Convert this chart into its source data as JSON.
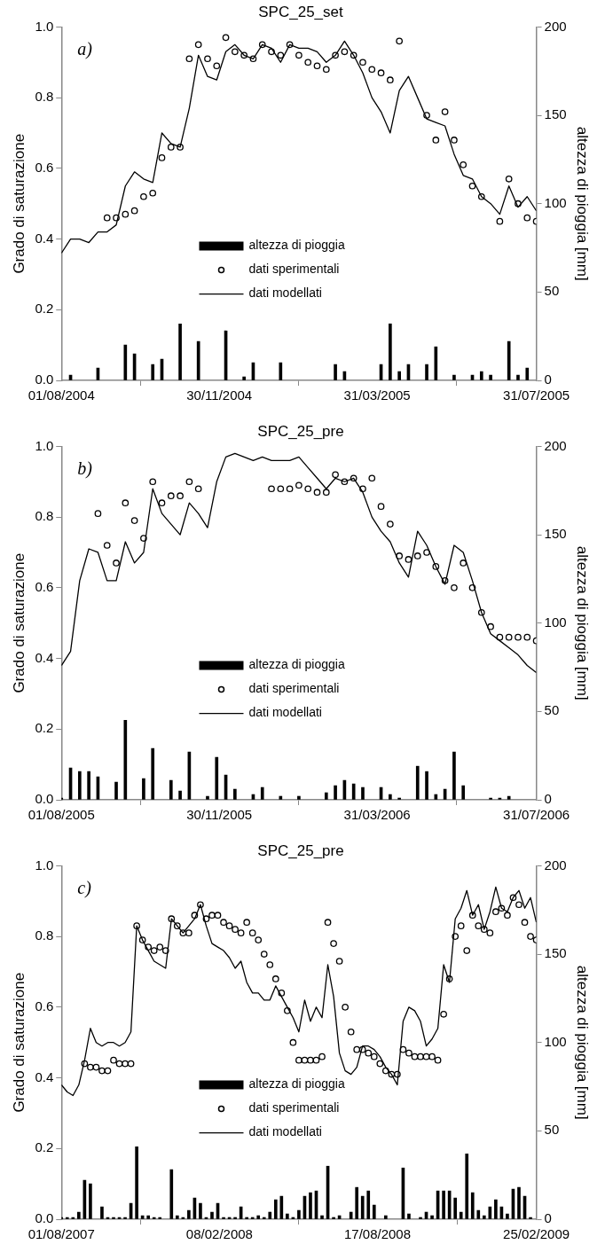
{
  "chart_data": [
    {
      "type": "line",
      "title": "SPC_25_set",
      "ylabel": "Grado di saturazione",
      "y2label": "altezza di pioggia [mm]",
      "annotations": [
        "a)"
      ],
      "legend": "bottom",
      "x": [
        "2004-08-01",
        "2004-08-08",
        "2004-08-15",
        "2004-08-22",
        "2004-08-29",
        "2004-09-05",
        "2004-09-12",
        "2004-09-19",
        "2004-09-26",
        "2004-10-03",
        "2004-10-10",
        "2004-10-17",
        "2004-10-24",
        "2004-10-31",
        "2004-11-07",
        "2004-11-14",
        "2004-11-21",
        "2004-11-28",
        "2004-12-05",
        "2004-12-12",
        "2004-12-19",
        "2004-12-26",
        "2005-01-02",
        "2005-01-09",
        "2005-01-16",
        "2005-01-23",
        "2005-01-30",
        "2005-02-06",
        "2005-02-13",
        "2005-02-20",
        "2005-02-27",
        "2005-03-06",
        "2005-03-13",
        "2005-03-20",
        "2005-03-27",
        "2005-04-03",
        "2005-04-10",
        "2005-04-17",
        "2005-04-24",
        "2005-05-01",
        "2005-05-08",
        "2005-05-15",
        "2005-05-22",
        "2005-05-29",
        "2005-06-05",
        "2005-06-12",
        "2005-06-19",
        "2005-06-26",
        "2005-07-03",
        "2005-07-10",
        "2005-07-17",
        "2005-07-24",
        "2005-07-31"
      ],
      "xlim": [
        "2004-08-01",
        "2005-07-31"
      ],
      "xticks": [
        {
          "value": "2004-08-01",
          "label": "01/08/2004"
        },
        {
          "value": "2004-11-30",
          "label": "30/11/2004"
        },
        {
          "value": "2005-03-31",
          "label": "31/03/2005"
        },
        {
          "value": "2005-07-31",
          "label": "31/07/2005"
        }
      ],
      "ylim": [
        0,
        1
      ],
      "yticks": [
        {
          "value": 0,
          "label": "0.0"
        },
        {
          "value": 0.2,
          "label": "0.2"
        },
        {
          "value": 0.4,
          "label": "0.4"
        },
        {
          "value": 0.6,
          "label": "0.6"
        },
        {
          "value": 0.8,
          "label": "0.8"
        },
        {
          "value": 1,
          "label": "1.0"
        }
      ],
      "y2lim": [
        0,
        200
      ],
      "y2ticks": [
        0,
        50,
        100,
        150,
        200
      ],
      "series": [
        {
          "name": "altezza di pioggia",
          "type": "bar",
          "axis": "y2",
          "color": "#000000",
          "values": [
            null,
            3,
            null,
            null,
            7,
            null,
            null,
            20,
            15,
            null,
            9,
            12,
            null,
            32,
            null,
            22,
            null,
            null,
            28,
            null,
            2,
            10,
            null,
            null,
            10,
            null,
            null,
            null,
            null,
            null,
            9,
            5,
            null,
            null,
            null,
            9,
            32,
            5,
            9,
            null,
            9,
            19,
            null,
            3,
            null,
            3,
            5,
            3,
            null,
            22,
            3,
            7,
            null
          ]
        },
        {
          "name": "dati sperimentali",
          "type": "scatter",
          "marker": "circle",
          "color": "#000000",
          "values": [
            null,
            null,
            null,
            null,
            null,
            0.46,
            0.46,
            0.47,
            0.48,
            0.52,
            0.53,
            0.63,
            0.66,
            0.66,
            0.91,
            0.95,
            0.91,
            0.89,
            0.97,
            0.93,
            0.92,
            0.91,
            0.95,
            0.93,
            0.92,
            0.95,
            0.92,
            0.9,
            0.89,
            0.88,
            0.92,
            0.93,
            0.92,
            0.9,
            0.88,
            0.87,
            0.85,
            0.96,
            null,
            null,
            0.75,
            0.68,
            0.76,
            0.68,
            0.61,
            0.55,
            0.52,
            null,
            0.45,
            0.57,
            0.5,
            0.46,
            0.45
          ]
        },
        {
          "name": "dati modellati",
          "color": "#000000",
          "values": [
            0.36,
            0.4,
            0.4,
            0.39,
            0.42,
            0.42,
            0.44,
            0.55,
            0.59,
            0.57,
            0.56,
            0.7,
            0.67,
            0.66,
            0.77,
            0.92,
            0.86,
            0.85,
            0.93,
            0.95,
            0.92,
            0.91,
            0.95,
            0.94,
            0.9,
            0.95,
            0.94,
            0.94,
            0.93,
            0.9,
            0.92,
            0.96,
            0.92,
            0.87,
            0.8,
            0.76,
            0.7,
            0.82,
            0.86,
            0.8,
            0.74,
            0.73,
            0.72,
            0.64,
            0.58,
            0.57,
            0.52,
            0.5,
            0.47,
            0.55,
            0.49,
            0.52,
            0.48
          ]
        }
      ]
    },
    {
      "type": "line",
      "title": "SPC_25_pre",
      "ylabel": "Grado di saturazione",
      "y2label": "altezza di pioggia [mm]",
      "annotations": [
        "b)"
      ],
      "legend": "bottom",
      "x": [
        "2005-08-01",
        "2005-08-08",
        "2005-08-15",
        "2005-08-22",
        "2005-08-29",
        "2005-09-05",
        "2005-09-12",
        "2005-09-19",
        "2005-09-26",
        "2005-10-03",
        "2005-10-10",
        "2005-10-17",
        "2005-10-24",
        "2005-10-31",
        "2005-11-07",
        "2005-11-14",
        "2005-11-21",
        "2005-11-28",
        "2005-12-05",
        "2005-12-12",
        "2005-12-19",
        "2005-12-26",
        "2006-01-02",
        "2006-01-09",
        "2006-01-16",
        "2006-01-23",
        "2006-01-30",
        "2006-02-06",
        "2006-02-13",
        "2006-02-20",
        "2006-02-27",
        "2006-03-06",
        "2006-03-13",
        "2006-03-20",
        "2006-03-27",
        "2006-04-03",
        "2006-04-10",
        "2006-04-17",
        "2006-04-24",
        "2006-05-01",
        "2006-05-08",
        "2006-05-15",
        "2006-05-22",
        "2006-05-29",
        "2006-06-05",
        "2006-06-12",
        "2006-06-19",
        "2006-06-26",
        "2006-07-03",
        "2006-07-10",
        "2006-07-17",
        "2006-07-24",
        "2006-07-31"
      ],
      "xlim": [
        "2005-08-01",
        "2006-07-31"
      ],
      "xticks": [
        {
          "value": "2005-08-01",
          "label": "01/08/2005"
        },
        {
          "value": "2005-11-30",
          "label": "30/11/2005"
        },
        {
          "value": "2006-03-31",
          "label": "31/03/2006"
        },
        {
          "value": "2006-07-31",
          "label": "31/07/2006"
        }
      ],
      "ylim": [
        0,
        1
      ],
      "yticks": [
        {
          "value": 0,
          "label": "0.0"
        },
        {
          "value": 0.2,
          "label": "0.2"
        },
        {
          "value": 0.4,
          "label": "0.4"
        },
        {
          "value": 0.6,
          "label": "0.6"
        },
        {
          "value": 0.8,
          "label": "0.8"
        },
        {
          "value": 1,
          "label": "1.0"
        }
      ],
      "y2lim": [
        0,
        200
      ],
      "y2ticks": [
        0,
        50,
        100,
        150,
        200
      ],
      "series": [
        {
          "name": "altezza di pioggia",
          "type": "bar",
          "axis": "y2",
          "color": "#000000",
          "values": [
            1,
            18,
            16,
            16,
            13,
            null,
            10,
            45,
            null,
            12,
            29,
            null,
            11,
            5,
            27,
            null,
            2,
            24,
            14,
            6,
            null,
            3,
            7,
            null,
            2,
            null,
            2,
            null,
            null,
            4,
            8,
            11,
            9,
            7,
            null,
            7,
            3,
            1,
            null,
            19,
            16,
            3,
            6,
            27,
            8,
            null,
            null,
            1,
            1,
            2,
            null,
            null,
            null
          ]
        },
        {
          "name": "dati sperimentali",
          "type": "scatter",
          "marker": "circle",
          "color": "#000000",
          "values": [
            null,
            null,
            null,
            null,
            0.81,
            0.72,
            0.67,
            0.84,
            0.79,
            0.74,
            0.9,
            0.84,
            0.86,
            0.86,
            0.9,
            0.88,
            null,
            null,
            null,
            null,
            null,
            null,
            null,
            0.88,
            0.88,
            0.88,
            0.89,
            0.88,
            0.87,
            0.87,
            0.92,
            0.9,
            0.91,
            0.88,
            0.91,
            0.83,
            0.78,
            0.69,
            0.68,
            0.69,
            0.7,
            0.66,
            0.62,
            0.6,
            0.67,
            0.6,
            0.53,
            0.49,
            0.46,
            0.46,
            0.46,
            0.46,
            0.45
          ]
        },
        {
          "name": "dati modellati",
          "color": "#000000",
          "values": [
            0.38,
            0.42,
            0.62,
            0.71,
            0.7,
            0.62,
            0.62,
            0.73,
            0.67,
            0.7,
            0.88,
            0.81,
            0.78,
            0.75,
            0.84,
            0.81,
            0.77,
            0.9,
            0.97,
            0.98,
            0.97,
            0.96,
            0.97,
            0.96,
            0.96,
            0.96,
            0.97,
            0.94,
            0.91,
            0.88,
            0.91,
            0.9,
            0.91,
            0.87,
            0.8,
            0.76,
            0.73,
            0.67,
            0.63,
            0.76,
            0.72,
            0.66,
            0.61,
            0.72,
            0.7,
            0.62,
            0.53,
            0.47,
            0.45,
            0.43,
            0.41,
            0.38,
            0.36
          ]
        }
      ]
    },
    {
      "type": "line",
      "title": "SPC_25_pre",
      "ylabel": "Grado di saturazione",
      "y2label": "altezza di pioggia [mm]",
      "annotations": [
        "c)"
      ],
      "legend": "bottom",
      "x": [
        "2007-08-01",
        "2007-08-08",
        "2007-08-15",
        "2007-08-22",
        "2007-08-29",
        "2007-09-05",
        "2007-09-12",
        "2007-09-19",
        "2007-09-26",
        "2007-10-03",
        "2007-10-10",
        "2007-10-17",
        "2007-10-24",
        "2007-10-31",
        "2007-11-07",
        "2007-11-14",
        "2007-11-21",
        "2007-11-28",
        "2007-12-05",
        "2007-12-12",
        "2007-12-19",
        "2007-12-26",
        "2008-01-02",
        "2008-01-09",
        "2008-01-16",
        "2008-01-23",
        "2008-01-30",
        "2008-02-06",
        "2008-02-13",
        "2008-02-20",
        "2008-02-27",
        "2008-03-05",
        "2008-03-12",
        "2008-03-19",
        "2008-03-26",
        "2008-04-02",
        "2008-04-09",
        "2008-04-16",
        "2008-04-23",
        "2008-04-30",
        "2008-05-07",
        "2008-05-14",
        "2008-05-21",
        "2008-05-28",
        "2008-06-04",
        "2008-06-11",
        "2008-06-18",
        "2008-06-25",
        "2008-07-02",
        "2008-07-09",
        "2008-07-16",
        "2008-07-23",
        "2008-07-30",
        "2008-08-06",
        "2008-08-13",
        "2008-08-20",
        "2008-08-27",
        "2008-09-03",
        "2008-09-10",
        "2008-09-17",
        "2008-09-24",
        "2008-10-01",
        "2008-10-08",
        "2008-10-15",
        "2008-10-22",
        "2008-10-29",
        "2008-11-05",
        "2008-11-12",
        "2008-11-19",
        "2008-11-26",
        "2008-12-03",
        "2008-12-10",
        "2008-12-17",
        "2008-12-24",
        "2008-12-31",
        "2009-01-07",
        "2009-01-14",
        "2009-01-21",
        "2009-01-28",
        "2009-02-04",
        "2009-02-11",
        "2009-02-18",
        "2009-02-25"
      ],
      "xlim": [
        "2007-08-01",
        "2009-02-25"
      ],
      "xticks": [
        {
          "value": "2007-08-01",
          "label": "01/08/2007"
        },
        {
          "value": "2008-02-08",
          "label": "08/02/2008"
        },
        {
          "value": "2008-08-17",
          "label": "17/08/2008"
        },
        {
          "value": "2009-02-25",
          "label": "25/02/2009"
        }
      ],
      "ylim": [
        0,
        1
      ],
      "yticks": [
        {
          "value": 0,
          "label": "0.0"
        },
        {
          "value": 0.2,
          "label": "0.2"
        },
        {
          "value": 0.4,
          "label": "0.4"
        },
        {
          "value": 0.6,
          "label": "0.6"
        },
        {
          "value": 0.8,
          "label": "0.8"
        },
        {
          "value": 1,
          "label": "1.0"
        }
      ],
      "y2lim": [
        0,
        200
      ],
      "y2ticks": [
        0,
        50,
        100,
        150,
        200
      ],
      "series": [
        {
          "name": "altezza di pioggia",
          "type": "bar",
          "axis": "y2",
          "color": "#000000",
          "values": [
            1,
            1,
            1,
            4,
            22,
            20,
            null,
            7,
            1,
            1,
            1,
            1,
            9,
            41,
            2,
            2,
            1,
            1,
            null,
            28,
            2,
            1,
            5,
            12,
            9,
            1,
            4,
            9,
            1,
            1,
            1,
            7,
            1,
            1,
            2,
            1,
            4,
            11,
            13,
            3,
            1,
            5,
            13,
            15,
            16,
            2,
            30,
            1,
            2,
            null,
            4,
            18,
            13,
            16,
            8,
            null,
            2,
            null,
            null,
            29,
            3,
            null,
            1,
            4,
            2,
            16,
            16,
            16,
            12,
            4,
            37,
            15,
            5,
            2,
            7,
            11,
            7,
            3,
            17,
            18,
            13,
            1,
            null
          ]
        },
        {
          "name": "dati sperimentali",
          "type": "scatter",
          "marker": "circle",
          "color": "#000000",
          "values": [
            null,
            null,
            null,
            null,
            0.44,
            0.43,
            0.43,
            0.42,
            0.42,
            0.45,
            0.44,
            0.44,
            0.44,
            0.83,
            0.79,
            0.77,
            0.76,
            0.77,
            0.76,
            0.85,
            0.83,
            0.81,
            0.81,
            0.86,
            0.89,
            0.85,
            0.86,
            0.86,
            0.84,
            0.83,
            0.82,
            0.81,
            0.84,
            0.81,
            0.79,
            0.75,
            0.72,
            0.68,
            0.64,
            0.59,
            0.5,
            0.45,
            0.45,
            0.45,
            0.45,
            0.46,
            0.84,
            0.78,
            0.73,
            0.6,
            0.53,
            0.48,
            0.48,
            0.47,
            0.46,
            0.44,
            0.42,
            0.41,
            0.41,
            0.48,
            0.47,
            0.46,
            0.46,
            0.46,
            0.46,
            0.45,
            0.58,
            0.68,
            0.8,
            0.83,
            0.76,
            0.86,
            0.83,
            0.82,
            0.81,
            0.87,
            0.88,
            0.86,
            0.91,
            0.89,
            0.84,
            0.8,
            0.79
          ]
        },
        {
          "name": "dati modellati",
          "color": "#000000",
          "values": [
            0.38,
            0.36,
            0.35,
            0.38,
            0.45,
            0.54,
            0.5,
            0.49,
            0.5,
            0.5,
            0.49,
            0.5,
            0.53,
            0.83,
            0.79,
            0.76,
            0.73,
            0.72,
            0.71,
            0.85,
            0.83,
            0.81,
            0.83,
            0.85,
            0.89,
            0.83,
            0.78,
            0.77,
            0.76,
            0.74,
            0.71,
            0.73,
            0.67,
            0.64,
            0.64,
            0.62,
            0.62,
            0.66,
            0.63,
            0.6,
            0.57,
            0.53,
            0.62,
            0.56,
            0.6,
            0.57,
            0.72,
            0.63,
            0.47,
            0.42,
            0.41,
            0.43,
            0.49,
            0.49,
            0.48,
            0.46,
            0.43,
            0.41,
            0.38,
            0.56,
            0.6,
            0.59,
            0.56,
            0.49,
            0.51,
            0.54,
            0.72,
            0.67,
            0.85,
            0.88,
            0.93,
            0.86,
            0.89,
            0.82,
            0.87,
            0.94,
            0.88,
            0.87,
            0.91,
            0.93,
            0.88,
            0.91,
            0.84
          ]
        }
      ]
    }
  ]
}
